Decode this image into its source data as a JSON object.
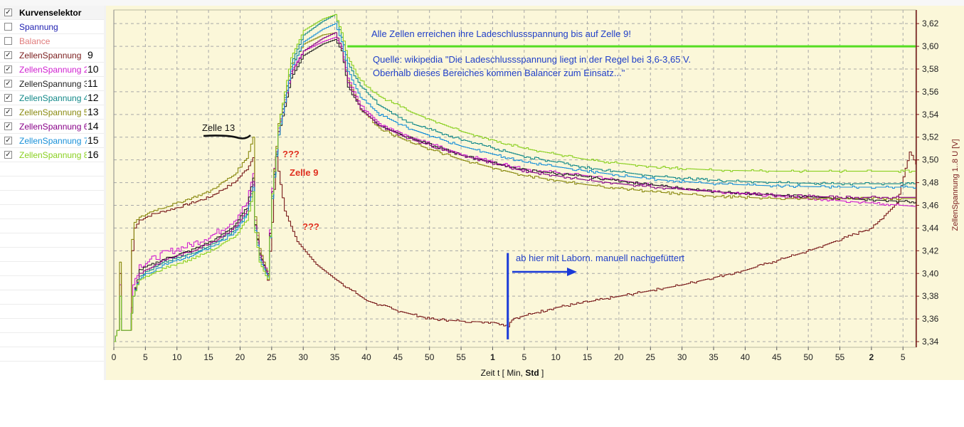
{
  "legend_panel": {
    "header": "Kurvenselektor",
    "items": [
      {
        "label": "Spannung",
        "checked": false,
        "color": "#1d1db0",
        "num": ""
      },
      {
        "label": "Balance",
        "checked": false,
        "color": "#e07c7c",
        "num": ""
      },
      {
        "label": "ZellenSpannung",
        "checked": true,
        "color": "#7a1c1c",
        "num": "9"
      },
      {
        "label": "ZellenSpannung 2",
        "checked": true,
        "color": "#d020d0",
        "num": "10"
      },
      {
        "label": "ZellenSpannung 3",
        "checked": true,
        "color": "#222222",
        "num": "11"
      },
      {
        "label": "ZellenSpannung 4",
        "checked": true,
        "color": "#118888",
        "num": "12"
      },
      {
        "label": "ZellenSpannung 5",
        "checked": true,
        "color": "#8a8a10",
        "num": "13"
      },
      {
        "label": "ZellenSpannung 6",
        "checked": true,
        "color": "#880088",
        "num": "14"
      },
      {
        "label": "ZellenSpannung 7",
        "checked": true,
        "color": "#1890d8",
        "num": "15"
      },
      {
        "label": "ZellenSpannung 8",
        "checked": true,
        "color": "#8ad020",
        "num": "16"
      }
    ]
  },
  "annotations": {
    "all_cells": "Alle Zellen erreichen ihre Ladeschlussspannung bis auf Zelle 9!",
    "source_line1": "Quelle: wikipedia \"Die Ladeschlussspannung liegt in der Regel bei 3,6-3,65 V.",
    "source_line2": "Oberhalb dieses Bereiches kommen Balancer zum Einsatz...\"",
    "zelle13": "Zelle 13",
    "zelle9": "Zelle 9",
    "q1": "???",
    "q2": "???",
    "manual": "ab hier mit Laborn. manuell nachgefüttert"
  },
  "chart_data": {
    "type": "line",
    "xlabel_prefix": "Zeit  t",
    "xlabel_unit_open": "[ Min, ",
    "xlabel_unit_bold": "Std",
    "xlabel_unit_close": " ]",
    "ylabel": "ZellenSpannung 1..8  U  [V]",
    "x_range_min": [
      0,
      127
    ],
    "y_range": [
      3.335,
      3.632
    ],
    "x_ticks": [
      {
        "min": 0,
        "label": "0"
      },
      {
        "min": 5,
        "label": "5"
      },
      {
        "min": 10,
        "label": "10"
      },
      {
        "min": 15,
        "label": "15"
      },
      {
        "min": 20,
        "label": "20"
      },
      {
        "min": 25,
        "label": "25"
      },
      {
        "min": 30,
        "label": "30"
      },
      {
        "min": 35,
        "label": "35"
      },
      {
        "min": 40,
        "label": "40"
      },
      {
        "min": 45,
        "label": "45"
      },
      {
        "min": 50,
        "label": "50"
      },
      {
        "min": 55,
        "label": "55"
      },
      {
        "min": 60,
        "label": "1"
      },
      {
        "min": 65,
        "label": "5"
      },
      {
        "min": 70,
        "label": "10"
      },
      {
        "min": 75,
        "label": "15"
      },
      {
        "min": 80,
        "label": "20"
      },
      {
        "min": 85,
        "label": "25"
      },
      {
        "min": 90,
        "label": "30"
      },
      {
        "min": 95,
        "label": "35"
      },
      {
        "min": 100,
        "label": "40"
      },
      {
        "min": 105,
        "label": "45"
      },
      {
        "min": 110,
        "label": "50"
      },
      {
        "min": 115,
        "label": "55"
      },
      {
        "min": 120,
        "label": "2"
      },
      {
        "min": 125,
        "label": "5"
      }
    ],
    "y_ticks": [
      "3,34",
      "3,36",
      "3,38",
      "3,40",
      "3,42",
      "3,44",
      "3,46",
      "3,48",
      "3,50",
      "3,52",
      "3,54",
      "3,56",
      "3,58",
      "3,60",
      "3,62"
    ],
    "reference_line": {
      "y": 3.6,
      "x_from": 37,
      "x_to": 127,
      "color": "#55dd22"
    },
    "marker_line": {
      "x": 62.4,
      "y_from": 3.342,
      "y_to": 3.418,
      "color": "#1a3ad8"
    },
    "series": [
      {
        "name": "ZellenSpannung",
        "color": "#7a1c1c",
        "x": [
          0,
          0.5,
          0.9,
          1.2,
          2.5,
          2.8,
          3.2,
          4,
          6,
          10,
          15,
          19,
          21,
          22,
          22.3,
          23,
          24,
          24.3,
          25,
          25.6,
          26,
          27,
          29,
          32,
          35,
          40,
          45,
          50,
          55,
          60,
          62.4,
          63,
          70,
          80,
          90,
          100,
          110,
          115,
          120,
          124,
          126,
          127
        ],
        "y": [
          3.34,
          3.35,
          3.4,
          3.35,
          3.35,
          3.42,
          3.44,
          3.447,
          3.452,
          3.458,
          3.467,
          3.48,
          3.492,
          3.502,
          3.443,
          3.418,
          3.402,
          3.394,
          3.445,
          3.503,
          3.49,
          3.455,
          3.428,
          3.408,
          3.395,
          3.376,
          3.367,
          3.36,
          3.358,
          3.357,
          3.354,
          3.36,
          3.37,
          3.38,
          3.39,
          3.403,
          3.42,
          3.43,
          3.44,
          3.462,
          3.508,
          3.496
        ]
      },
      {
        "name": "ZellenSpannung 2",
        "color": "#d020d0",
        "x": [
          0,
          0.5,
          0.9,
          1.2,
          2.5,
          3,
          4,
          8,
          12,
          16,
          19,
          21,
          22,
          22.3,
          23,
          24,
          24.3,
          25,
          26,
          28,
          30,
          33,
          35,
          36,
          37,
          39,
          42,
          47,
          55,
          65,
          75,
          85,
          95,
          105,
          115,
          127
        ],
        "y": [
          3.34,
          3.35,
          3.39,
          3.35,
          3.35,
          3.39,
          3.407,
          3.418,
          3.425,
          3.435,
          3.447,
          3.462,
          3.488,
          3.447,
          3.42,
          3.405,
          3.402,
          3.475,
          3.528,
          3.578,
          3.596,
          3.604,
          3.608,
          3.6,
          3.572,
          3.548,
          3.532,
          3.52,
          3.505,
          3.492,
          3.486,
          3.478,
          3.472,
          3.468,
          3.464,
          3.459
        ]
      },
      {
        "name": "ZellenSpannung 3",
        "color": "#222222",
        "x": [
          0,
          0.5,
          0.9,
          1.2,
          2.5,
          3,
          4,
          8,
          12,
          16,
          19,
          21,
          22,
          22.3,
          23,
          24,
          24.3,
          25,
          26,
          28,
          30,
          33,
          35,
          36,
          37,
          39,
          42,
          47,
          55,
          65,
          75,
          85,
          95,
          105,
          115,
          127
        ],
        "y": [
          3.34,
          3.35,
          3.38,
          3.35,
          3.35,
          3.38,
          3.403,
          3.413,
          3.42,
          3.43,
          3.442,
          3.458,
          3.484,
          3.443,
          3.417,
          3.403,
          3.4,
          3.47,
          3.522,
          3.572,
          3.592,
          3.602,
          3.606,
          3.596,
          3.565,
          3.545,
          3.53,
          3.519,
          3.504,
          3.491,
          3.485,
          3.478,
          3.472,
          3.469,
          3.466,
          3.463
        ]
      },
      {
        "name": "ZellenSpannung 4",
        "color": "#118888",
        "x": [
          0,
          0.5,
          0.9,
          1.2,
          2.5,
          3,
          4,
          8,
          12,
          16,
          19,
          21,
          22,
          22.3,
          23,
          24,
          24.3,
          25,
          26,
          28,
          30,
          33,
          35,
          36,
          37,
          39,
          42,
          47,
          55,
          65,
          75,
          85,
          95,
          105,
          115,
          127
        ],
        "y": [
          3.34,
          3.35,
          3.38,
          3.35,
          3.35,
          3.38,
          3.398,
          3.41,
          3.417,
          3.427,
          3.438,
          3.453,
          3.478,
          3.44,
          3.414,
          3.401,
          3.398,
          3.468,
          3.525,
          3.585,
          3.61,
          3.622,
          3.628,
          3.608,
          3.585,
          3.565,
          3.548,
          3.532,
          3.518,
          3.503,
          3.493,
          3.486,
          3.482,
          3.48,
          3.479,
          3.479
        ]
      },
      {
        "name": "ZellenSpannung 5",
        "color": "#8a8a10",
        "x": [
          0,
          0.5,
          0.9,
          1.2,
          2.5,
          2.8,
          3.2,
          4,
          6,
          10,
          15,
          19,
          21,
          22,
          22.3,
          23,
          24,
          24.3,
          25,
          26,
          28,
          30,
          33,
          35,
          36,
          37,
          39,
          42,
          47,
          55,
          65,
          75,
          85,
          95,
          105,
          115,
          127
        ],
        "y": [
          3.34,
          3.35,
          3.41,
          3.35,
          3.35,
          3.43,
          3.445,
          3.449,
          3.455,
          3.462,
          3.472,
          3.487,
          3.502,
          3.52,
          3.45,
          3.422,
          3.404,
          3.398,
          3.472,
          3.532,
          3.582,
          3.602,
          3.61,
          3.612,
          3.598,
          3.57,
          3.545,
          3.528,
          3.515,
          3.5,
          3.486,
          3.478,
          3.472,
          3.468,
          3.466,
          3.466,
          3.466
        ]
      },
      {
        "name": "ZellenSpannung 6",
        "color": "#880088",
        "x": [
          0,
          0.5,
          0.9,
          1.2,
          2.5,
          3,
          4,
          8,
          12,
          16,
          19,
          21,
          22,
          22.3,
          23,
          24,
          24.3,
          25,
          26,
          28,
          30,
          33,
          35,
          36,
          37,
          39,
          42,
          47,
          55,
          65,
          75,
          85,
          95,
          105,
          115,
          127
        ],
        "y": [
          3.34,
          3.35,
          3.38,
          3.35,
          3.35,
          3.38,
          3.4,
          3.412,
          3.419,
          3.429,
          3.44,
          3.455,
          3.481,
          3.442,
          3.416,
          3.402,
          3.399,
          3.472,
          3.525,
          3.576,
          3.596,
          3.607,
          3.612,
          3.598,
          3.568,
          3.545,
          3.53,
          3.518,
          3.504,
          3.49,
          3.482,
          3.476,
          3.472,
          3.469,
          3.467,
          3.467
        ]
      },
      {
        "name": "ZellenSpannung 7",
        "color": "#1890d8",
        "x": [
          0,
          0.5,
          0.9,
          1.2,
          2.5,
          3,
          4,
          8,
          12,
          16,
          19,
          21,
          22,
          22.3,
          23,
          24,
          24.3,
          25,
          26,
          28,
          30,
          33,
          35,
          36,
          37,
          39,
          42,
          47,
          55,
          65,
          75,
          85,
          95,
          105,
          115,
          127
        ],
        "y": [
          3.34,
          3.35,
          3.38,
          3.35,
          3.35,
          3.38,
          3.396,
          3.408,
          3.415,
          3.425,
          3.436,
          3.451,
          3.476,
          3.438,
          3.412,
          3.4,
          3.397,
          3.466,
          3.522,
          3.58,
          3.604,
          3.615,
          3.62,
          3.604,
          3.578,
          3.555,
          3.54,
          3.527,
          3.512,
          3.498,
          3.49,
          3.483,
          3.479,
          3.477,
          3.476,
          3.476
        ]
      },
      {
        "name": "ZellenSpannung 8",
        "color": "#8ad020",
        "x": [
          0,
          0.5,
          0.9,
          1.2,
          2.5,
          3,
          4,
          8,
          12,
          16,
          19,
          21,
          22,
          22.3,
          23,
          24,
          24.3,
          25,
          26,
          28,
          30,
          33,
          35,
          36,
          37,
          39,
          42,
          47,
          55,
          65,
          75,
          85,
          95,
          105,
          115,
          127
        ],
        "y": [
          3.34,
          3.35,
          3.38,
          3.35,
          3.35,
          3.38,
          3.394,
          3.405,
          3.412,
          3.422,
          3.432,
          3.447,
          3.472,
          3.436,
          3.41,
          3.398,
          3.395,
          3.47,
          3.53,
          3.59,
          3.614,
          3.624,
          3.628,
          3.612,
          3.59,
          3.57,
          3.556,
          3.542,
          3.525,
          3.51,
          3.5,
          3.494,
          3.491,
          3.49,
          3.49,
          3.49
        ]
      }
    ]
  }
}
